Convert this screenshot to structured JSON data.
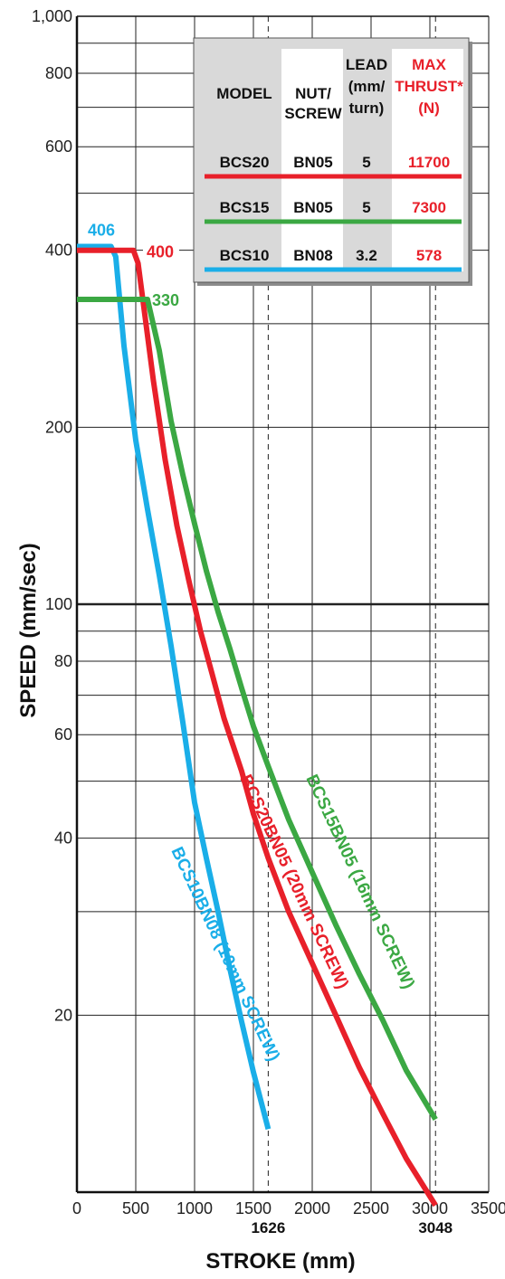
{
  "chart_data": {
    "type": "line",
    "xlabel": "STROKE (mm)",
    "ylabel": "SPEED (mm/sec)",
    "xlim": [
      0,
      3500
    ],
    "ylim": [
      10,
      1000
    ],
    "y_scale": "log",
    "grid": true,
    "x_ticks": [
      "0",
      "500",
      "1000",
      "1500",
      "2000",
      "2500",
      "3000",
      "3500"
    ],
    "y_tick_labels": [
      {
        "value": 1000,
        "label": "1,000"
      },
      {
        "value": 800,
        "label": "800"
      },
      {
        "value": 600,
        "label": "600"
      },
      {
        "value": 400,
        "label": "400"
      },
      {
        "value": 200,
        "label": "200"
      },
      {
        "value": 100,
        "label": "100"
      },
      {
        "value": 80,
        "label": "80"
      },
      {
        "value": 60,
        "label": "60"
      },
      {
        "value": 40,
        "label": "40"
      },
      {
        "value": 20,
        "label": "20"
      }
    ],
    "reference_lines": [
      {
        "x": 1626,
        "label": "1626"
      },
      {
        "x": 3048,
        "label": "3048"
      }
    ],
    "series": [
      {
        "name": "BCS10BN08 (10mm SCREW)",
        "color": "#1aaee8",
        "plateau_label": "406",
        "points": [
          [
            0,
            406
          ],
          [
            290,
            406
          ],
          [
            330,
            390
          ],
          [
            400,
            275
          ],
          [
            500,
            190
          ],
          [
            600,
            145
          ],
          [
            700,
            112
          ],
          [
            800,
            85
          ],
          [
            900,
            63
          ],
          [
            1000,
            46
          ],
          [
            1100,
            37
          ],
          [
            1200,
            30
          ],
          [
            1300,
            24
          ],
          [
            1400,
            19.5
          ],
          [
            1500,
            16
          ],
          [
            1626,
            12.8
          ]
        ]
      },
      {
        "name": "BCS20BN05 (20mm SCREW)",
        "color": "#e8202a",
        "plateau_label": "400",
        "points": [
          [
            0,
            400
          ],
          [
            480,
            400
          ],
          [
            520,
            380
          ],
          [
            560,
            330
          ],
          [
            650,
            240
          ],
          [
            750,
            176
          ],
          [
            850,
            136
          ],
          [
            950,
            110
          ],
          [
            1050,
            90
          ],
          [
            1150,
            76
          ],
          [
            1250,
            64
          ],
          [
            1400,
            52
          ],
          [
            1500,
            44
          ],
          [
            1626,
            37
          ],
          [
            1800,
            30
          ],
          [
            2000,
            24.5
          ],
          [
            2200,
            20
          ],
          [
            2400,
            16.3
          ],
          [
            2600,
            13.6
          ],
          [
            2800,
            11.4
          ],
          [
            3048,
            9.5
          ]
        ]
      },
      {
        "name": "BCS15BN05 (16mm SCREW)",
        "color": "#3ba843",
        "plateau_label": "330",
        "points": [
          [
            0,
            330
          ],
          [
            600,
            330
          ],
          [
            700,
            270
          ],
          [
            800,
            205
          ],
          [
            900,
            166
          ],
          [
            1000,
            137
          ],
          [
            1100,
            114
          ],
          [
            1200,
            97
          ],
          [
            1300,
            84
          ],
          [
            1400,
            72
          ],
          [
            1500,
            62
          ],
          [
            1626,
            53
          ],
          [
            1800,
            43
          ],
          [
            2000,
            35
          ],
          [
            2200,
            28.5
          ],
          [
            2400,
            23.5
          ],
          [
            2600,
            19.6
          ],
          [
            2800,
            16.1
          ],
          [
            3048,
            13.3
          ]
        ]
      }
    ],
    "table": {
      "headers": {
        "model": "MODEL",
        "nut_line1": "NUT/",
        "nut_line2": "SCREW",
        "lead_line1": "LEAD",
        "lead_line2": "(mm/",
        "lead_line3": "turn)",
        "thrust_line1": "MAX",
        "thrust_line2": "THRUST*",
        "thrust_line3": "(N)"
      },
      "rows": [
        {
          "model": "BCS20",
          "nut": "BN05",
          "lead": "5",
          "thrust": "11700",
          "color": "#e8202a"
        },
        {
          "model": "BCS15",
          "nut": "BN05",
          "lead": "5",
          "thrust": "7300",
          "color": "#3ba843"
        },
        {
          "model": "BCS10",
          "nut": "BN08",
          "lead": "3.2",
          "thrust": "578",
          "color": "#1aaee8"
        }
      ]
    }
  }
}
